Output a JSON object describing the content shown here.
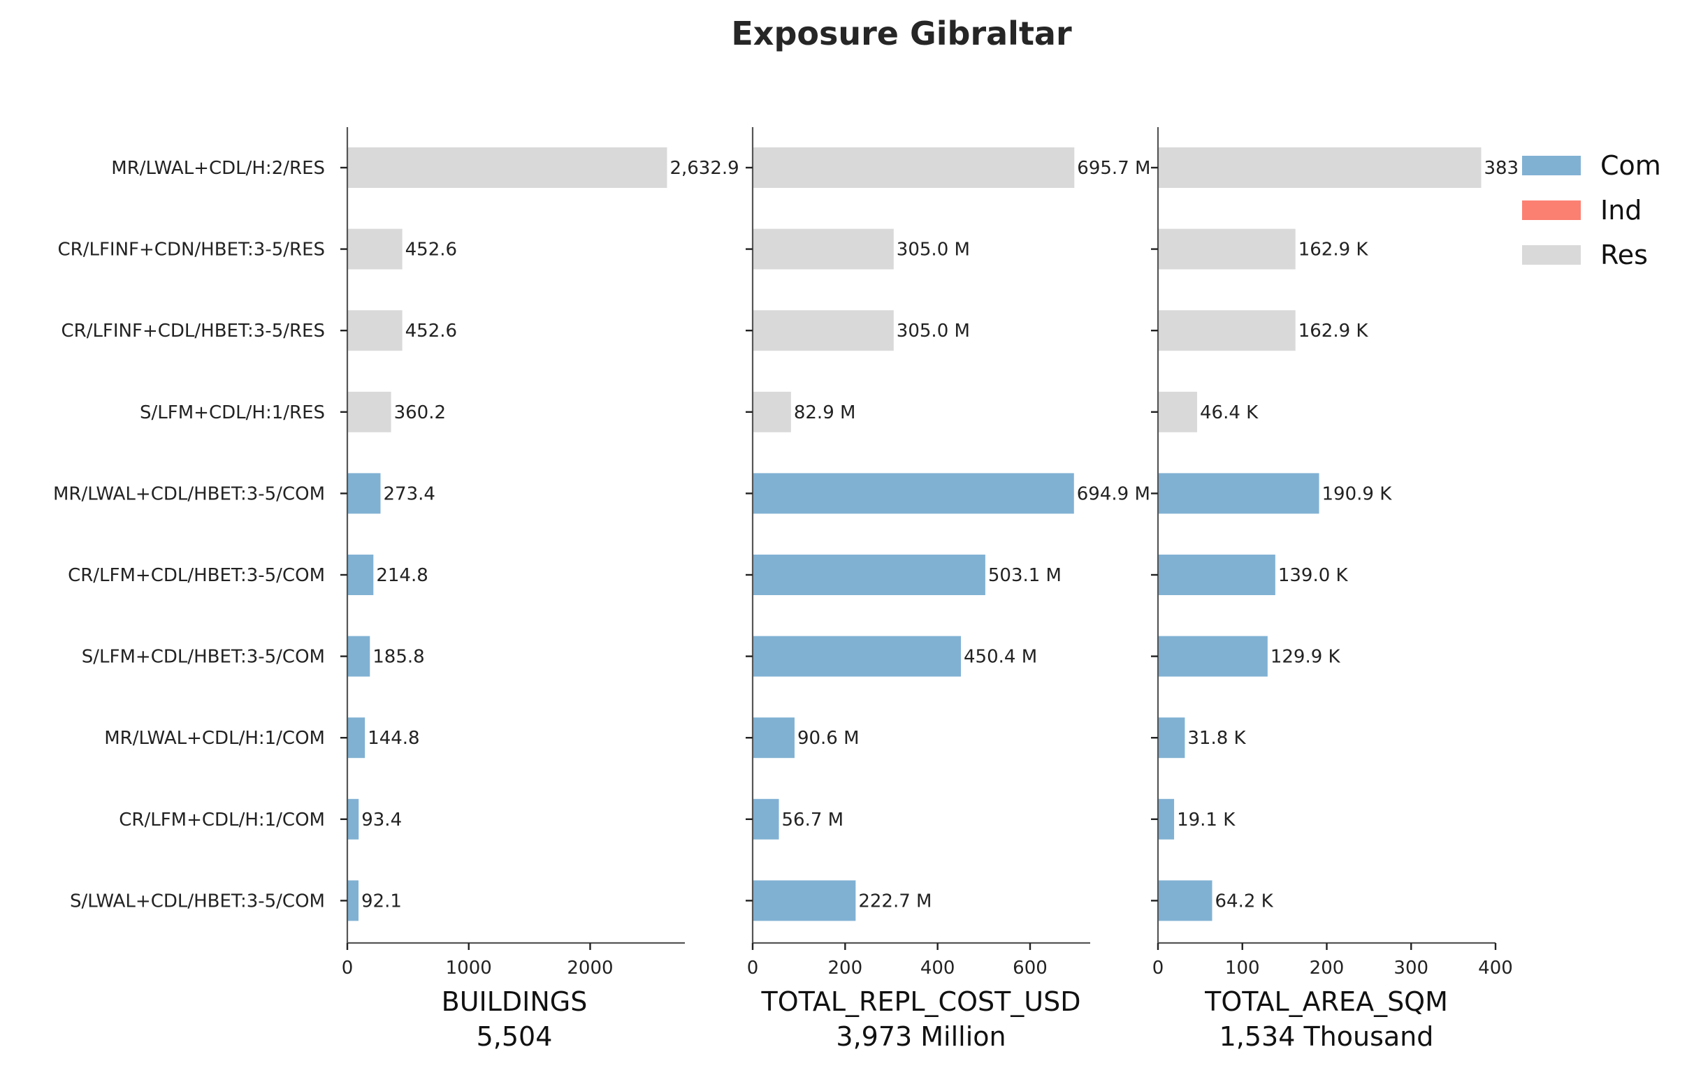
{
  "chart_data": {
    "type": "bar",
    "orientation": "horizontal",
    "title": "Exposure Gibraltar",
    "categories": [
      "MR/LWAL+CDL/H:2/RES",
      "CR/LFINF+CDN/HBET:3-5/RES",
      "CR/LFINF+CDL/HBET:3-5/RES",
      "S/LFM+CDL/H:1/RES",
      "MR/LWAL+CDL/HBET:3-5/COM",
      "CR/LFM+CDL/HBET:3-5/COM",
      "S/LFM+CDL/HBET:3-5/COM",
      "MR/LWAL+CDL/H:1/COM",
      "CR/LFM+CDL/H:1/COM",
      "S/LWAL+CDL/HBET:3-5/COM"
    ],
    "occupancy": [
      "Res",
      "Res",
      "Res",
      "Res",
      "Com",
      "Com",
      "Com",
      "Com",
      "Com",
      "Com"
    ],
    "legend": {
      "position": "right",
      "entries": [
        {
          "name": "Com",
          "color": "#80b1d3"
        },
        {
          "name": "Ind",
          "color": "#fb8072"
        },
        {
          "name": "Res",
          "color": "#d9d9d9"
        }
      ]
    },
    "panels": [
      {
        "xlabel": "BUILDINGS",
        "total_label": "5,504",
        "xlim": [
          0,
          2780
        ],
        "ticks": [
          0,
          1000,
          2000
        ],
        "tick_labels": [
          "0",
          "1000",
          "2000"
        ],
        "values": [
          2632.9,
          452.6,
          452.6,
          360.2,
          273.4,
          214.8,
          185.8,
          144.8,
          93.4,
          92.1
        ],
        "value_labels": [
          "2,632.9",
          "452.6",
          "452.6",
          "360.2",
          "273.4",
          "214.8",
          "185.8",
          "144.8",
          "93.4",
          "92.1"
        ]
      },
      {
        "xlabel": "TOTAL_REPL_COST_USD",
        "total_label": "3,973 Million",
        "xlim": [
          0,
          730
        ],
        "ticks": [
          0,
          200,
          400,
          600
        ],
        "tick_labels": [
          "0",
          "200",
          "400",
          "600"
        ],
        "values": [
          695.7,
          305.0,
          305.0,
          82.9,
          694.9,
          503.1,
          450.4,
          90.6,
          56.7,
          222.7
        ],
        "value_labels": [
          "695.7 M",
          "305.0 M",
          "305.0 M",
          "82.9 M",
          "694.9 M",
          "503.1 M",
          "450.4 M",
          "90.6 M",
          "56.7 M",
          "222.7 M"
        ]
      },
      {
        "xlabel": "TOTAL_AREA_SQM",
        "total_label": "1,534 Thousand",
        "xlim": [
          0,
          400
        ],
        "ticks": [
          0,
          100,
          200,
          300,
          400
        ],
        "tick_labels": [
          "0",
          "100",
          "200",
          "300",
          "400"
        ],
        "values": [
          383.0,
          162.9,
          162.9,
          46.4,
          190.9,
          139.0,
          129.9,
          31.8,
          19.1,
          64.2
        ],
        "value_labels": [
          "383",
          "162.9 K",
          "162.9 K",
          "46.4 K",
          "190.9 K",
          "139.0 K",
          "129.9 K",
          "31.8 K",
          "19.1 K",
          "64.2 K"
        ]
      }
    ],
    "grid": false
  }
}
